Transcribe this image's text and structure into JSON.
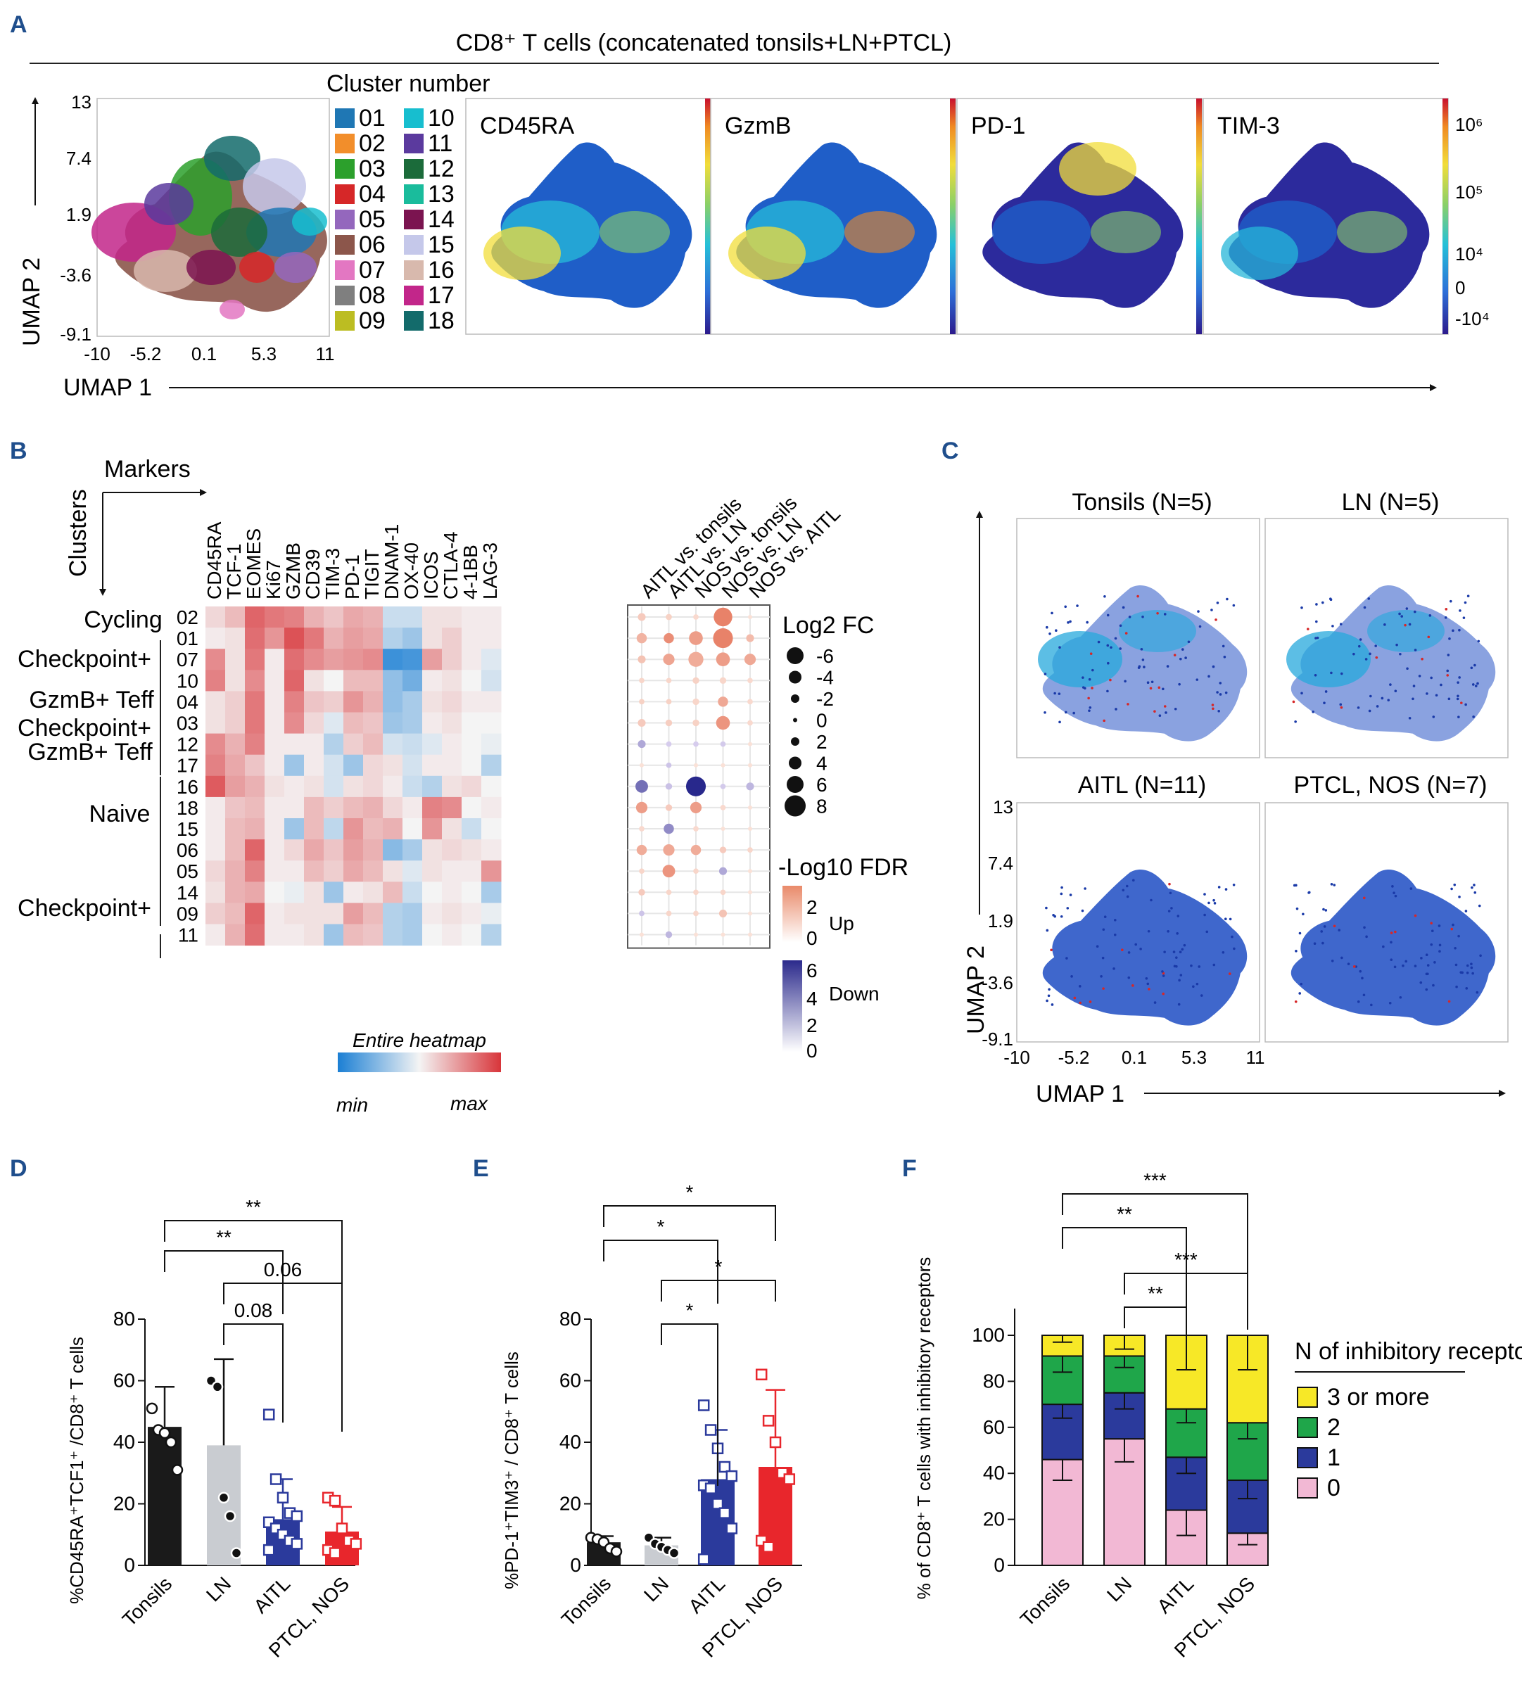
{
  "panels": {
    "A": {
      "label": "A",
      "title": "CD8⁺ T cells  (concatenated tonsils+LN+PTCL)",
      "legend_title": "Cluster number",
      "x_axis_label": "UMAP 1",
      "y_axis_label": "UMAP 2",
      "x_ticks": [
        "-10",
        "-5.2",
        "0.1",
        "5.3",
        "11"
      ],
      "y_ticks": [
        "13",
        "7.4",
        "1.9",
        "-3.6",
        "-9.1"
      ],
      "clusters": [
        {
          "id": "01",
          "color": "#1f77b4"
        },
        {
          "id": "02",
          "color": "#f28e2b"
        },
        {
          "id": "03",
          "color": "#2ca02c"
        },
        {
          "id": "04",
          "color": "#d62728"
        },
        {
          "id": "05",
          "color": "#9467bd"
        },
        {
          "id": "06",
          "color": "#8c564b"
        },
        {
          "id": "07",
          "color": "#e377c2"
        },
        {
          "id": "08",
          "color": "#7f7f7f"
        },
        {
          "id": "09",
          "color": "#bcbd22"
        },
        {
          "id": "10",
          "color": "#17becf"
        },
        {
          "id": "11",
          "color": "#5b3a9e"
        },
        {
          "id": "12",
          "color": "#1b6b3a"
        },
        {
          "id": "13",
          "color": "#1abc9c"
        },
        {
          "id": "14",
          "color": "#7b1450"
        },
        {
          "id": "15",
          "color": "#c5c8ea"
        },
        {
          "id": "16",
          "color": "#d8b9ad"
        },
        {
          "id": "17",
          "color": "#c2268a"
        },
        {
          "id": "18",
          "color": "#136b6b"
        }
      ],
      "markers": [
        "CD45RA",
        "GzmB",
        "PD-1",
        "TIM-3"
      ],
      "colorbar_ticks": [
        "10⁶",
        "10⁵",
        "10⁴",
        "0",
        "-10⁴"
      ]
    },
    "B": {
      "label": "B",
      "markers_label": "Markers",
      "clusters_label": "Clusters",
      "markers": [
        "CD45RA",
        "TCF-1",
        "EOMES",
        "Ki67",
        "GZMB",
        "CD39",
        "TIM-3",
        "PD-1",
        "TIGIT",
        "DNAM-1",
        "OX-40",
        "ICOS",
        "CTLA-4",
        "4-1BB",
        "LAG-3"
      ],
      "comparisons": [
        "AITL vs. tonsils",
        "AITL vs. LN",
        "NOS vs. tonsils",
        "NOS vs. LN",
        "NOS vs. AITL"
      ],
      "cluster_rows": [
        "02",
        "01",
        "07",
        "10",
        "04",
        "03",
        "12",
        "17",
        "16",
        "18",
        "15",
        "06",
        "05",
        "14",
        "09",
        "11"
      ],
      "group_labels": [
        "Cycling",
        "Checkpoint+",
        "GzmB+ Teff",
        "Checkpoint+",
        "GzmB+ Teff",
        "Naive",
        "Checkpoint+"
      ],
      "log2fc_title": "Log2 FC",
      "log2fc_levels": [
        "-6",
        "-4",
        "-2",
        "0",
        "2",
        "4",
        "6",
        "8"
      ],
      "fdr_title": "-Log10 FDR",
      "fdr_up_label": "Up",
      "fdr_down_label": "Down",
      "fdr_up_ticks": [
        "2",
        "0"
      ],
      "fdr_down_ticks": [
        "6",
        "4",
        "2",
        "0"
      ],
      "heatmap_title": "Entire heatmap",
      "heatmap_min": "min",
      "heatmap_max": "max"
    },
    "C": {
      "label": "C",
      "subpanels": [
        "Tonsils (N=5)",
        "LN (N=5)",
        "AITL (N=11)",
        "PTCL, NOS (N=7)"
      ],
      "x_axis_label": "UMAP 1",
      "y_axis_label": "UMAP 2",
      "x_ticks": [
        "-10",
        "-5.2",
        "0.1",
        "5.3",
        "11"
      ],
      "y_ticks": [
        "13",
        "7.4",
        "1.9",
        "-3.6",
        "-9.1"
      ]
    },
    "D": {
      "label": "D"
    },
    "E": {
      "label": "E"
    },
    "F": {
      "label": "F"
    }
  },
  "chart_data": [
    {
      "panel": "B",
      "type": "heatmap",
      "title": "Entire heatmap",
      "rows": [
        "02",
        "01",
        "07",
        "10",
        "04",
        "03",
        "12",
        "17",
        "16",
        "18",
        "15",
        "06",
        "05",
        "14",
        "09",
        "11"
      ],
      "columns": [
        "CD45RA",
        "TCF-1",
        "EOMES",
        "Ki67",
        "GZMB",
        "CD39",
        "TIM-3",
        "PD-1",
        "TIGIT",
        "DNAM-1",
        "OX-40",
        "ICOS",
        "CTLA-4",
        "4-1BB",
        "LAG-3"
      ],
      "scale": [
        -1,
        1
      ],
      "values": [
        [
          0.15,
          0.3,
          0.75,
          0.65,
          0.6,
          0.35,
          0.25,
          0.4,
          0.35,
          -0.2,
          -0.2,
          0.1,
          0.1,
          0.05,
          0.05
        ],
        [
          0.05,
          0.1,
          0.7,
          0.5,
          0.85,
          0.65,
          0.35,
          0.45,
          0.4,
          -0.3,
          -0.4,
          0.1,
          0.2,
          0.05,
          0.05
        ],
        [
          0.55,
          0.1,
          0.65,
          0.05,
          0.7,
          0.55,
          0.45,
          0.5,
          0.55,
          -0.85,
          -0.8,
          0.45,
          0.2,
          0.05,
          -0.1
        ],
        [
          0.6,
          0.1,
          0.55,
          0.05,
          0.75,
          0.1,
          0.0,
          0.3,
          0.3,
          -0.45,
          -0.6,
          0.05,
          0.1,
          0.0,
          -0.15
        ],
        [
          0.1,
          0.2,
          0.65,
          0.05,
          0.6,
          0.25,
          0.2,
          0.5,
          0.35,
          -0.45,
          -0.35,
          0.1,
          0.15,
          0.05,
          0.05
        ],
        [
          0.1,
          0.2,
          0.65,
          0.05,
          0.55,
          0.15,
          -0.1,
          0.3,
          0.25,
          -0.4,
          -0.35,
          0.05,
          0.1,
          0.0,
          0.0
        ],
        [
          0.55,
          0.35,
          0.6,
          0.05,
          0.05,
          0.05,
          -0.3,
          0.2,
          0.3,
          -0.15,
          -0.2,
          -0.1,
          0.05,
          0.0,
          -0.05
        ],
        [
          0.6,
          0.4,
          0.25,
          0.05,
          -0.4,
          0.05,
          -0.15,
          -0.4,
          0.15,
          0.1,
          -0.15,
          0.05,
          0.05,
          0.0,
          -0.3
        ],
        [
          0.8,
          0.45,
          0.35,
          0.1,
          0.05,
          0.1,
          -0.15,
          0.1,
          0.15,
          0.05,
          -0.2,
          -0.3,
          0.1,
          0.15,
          0.0
        ],
        [
          0.05,
          0.25,
          0.3,
          0.05,
          0.05,
          0.3,
          0.2,
          0.3,
          0.35,
          0.15,
          0.05,
          0.6,
          0.55,
          0.0,
          0.05
        ],
        [
          0.05,
          0.3,
          0.35,
          0.05,
          -0.4,
          0.3,
          -0.25,
          0.5,
          0.3,
          0.35,
          0.0,
          0.5,
          0.1,
          -0.2,
          0.0
        ],
        [
          0.05,
          0.3,
          0.75,
          0.05,
          0.15,
          0.4,
          0.25,
          0.45,
          0.35,
          -0.5,
          -0.35,
          0.1,
          0.15,
          0.1,
          0.05
        ],
        [
          0.15,
          0.35,
          0.6,
          0.05,
          0.05,
          0.3,
          0.2,
          0.4,
          0.3,
          0.1,
          -0.1,
          0.1,
          0.05,
          0.05,
          0.5
        ],
        [
          0.1,
          0.35,
          0.4,
          0.0,
          -0.05,
          0.1,
          -0.4,
          0.05,
          0.1,
          0.3,
          -0.2,
          0.0,
          0.05,
          0.0,
          -0.35
        ],
        [
          0.2,
          0.3,
          0.75,
          0.05,
          0.1,
          0.1,
          0.1,
          0.45,
          0.3,
          -0.3,
          -0.35,
          0.05,
          0.1,
          0.05,
          -0.05
        ],
        [
          0.05,
          0.35,
          0.7,
          0.05,
          0.05,
          0.1,
          -0.4,
          0.3,
          0.25,
          -0.3,
          -0.35,
          0.0,
          0.05,
          0.0,
          -0.3
        ]
      ]
    },
    {
      "panel": "B",
      "type": "scatter",
      "title": "Differential abundance (Log2 FC, -Log10 FDR)",
      "rows": [
        "02",
        "01",
        "07",
        "10",
        "04",
        "03",
        "12",
        "17",
        "16",
        "18",
        "15",
        "06",
        "05",
        "14",
        "09",
        "11"
      ],
      "columns": [
        "AITL vs. tonsils",
        "AITL vs. LN",
        "NOS vs. tonsils",
        "NOS vs. LN",
        "NOS vs. AITL"
      ],
      "log2fc": [
        [
          1.5,
          0.8,
          0.5,
          6,
          0
        ],
        [
          2.5,
          2.5,
          4,
          6.5,
          1.5
        ],
        [
          1.5,
          3,
          4.5,
          4,
          3
        ],
        [
          0.5,
          0.5,
          1,
          1,
          0.5
        ],
        [
          0.5,
          0.5,
          1,
          2.5,
          0.5
        ],
        [
          1.5,
          1,
          1,
          4,
          0.5
        ],
        [
          -1.5,
          -0.5,
          -0.5,
          -0.5,
          0
        ],
        [
          0,
          -0.5,
          0,
          0,
          0
        ],
        [
          -3.5,
          -1,
          -6.5,
          -0.5,
          -1.5
        ],
        [
          3,
          1,
          3,
          0.5,
          0
        ],
        [
          0.5,
          -2.5,
          0.5,
          0,
          0
        ],
        [
          2.5,
          3,
          2.5,
          1,
          0.5
        ],
        [
          0.5,
          3.5,
          0.5,
          -1.5,
          0
        ],
        [
          1,
          0.5,
          0.5,
          0.5,
          0
        ],
        [
          -0.5,
          0.5,
          0.5,
          1.5,
          0
        ],
        [
          0,
          -1,
          0,
          0,
          0
        ]
      ],
      "neg_log10_fdr": [
        [
          0.6,
          0.4,
          0.2,
          2.5,
          0
        ],
        [
          1.2,
          2.2,
          1.8,
          2.6,
          1
        ],
        [
          0.8,
          1.6,
          1.4,
          1.8,
          1.5
        ],
        [
          0.3,
          0.3,
          0.4,
          0.3,
          0.2
        ],
        [
          0.4,
          0.4,
          0.3,
          1.5,
          0.2
        ],
        [
          0.6,
          0.5,
          0.4,
          2,
          0.2
        ],
        [
          1.5,
          0.2,
          0.2,
          0.3,
          0
        ],
        [
          0,
          0.5,
          0,
          0,
          0
        ],
        [
          3.5,
          0.6,
          6,
          0.3,
          1
        ],
        [
          1.8,
          0.6,
          1.8,
          0.2,
          0
        ],
        [
          0.2,
          2.5,
          0.2,
          0,
          0
        ],
        [
          1.4,
          1.5,
          1.4,
          0.6,
          0.3
        ],
        [
          0.3,
          2,
          0.3,
          1.5,
          0
        ],
        [
          0.6,
          0.3,
          0.3,
          0.3,
          0
        ],
        [
          0.5,
          0.3,
          0.3,
          0.8,
          0
        ],
        [
          0,
          1,
          0,
          0,
          0
        ]
      ]
    },
    {
      "panel": "D",
      "type": "bar",
      "title": "",
      "ylabel": "%CD45RA⁺TCF1⁺ /CD8⁺ T cells",
      "xlabel": "",
      "categories": [
        "Tonsils",
        "LN",
        "AITL",
        "PTCL, NOS"
      ],
      "values": [
        45,
        39,
        15,
        11
      ],
      "errors": [
        13,
        28,
        13,
        8
      ],
      "colors": [
        "#1a1a1a",
        "#c9ccd1",
        "#2b3a9c",
        "#e8262c"
      ],
      "ylim": [
        0,
        80
      ],
      "yticks": [
        0,
        20,
        40,
        60,
        80
      ],
      "points": [
        [
          51,
          44,
          43,
          40,
          31
        ],
        [
          60,
          58,
          22,
          16,
          4
        ],
        [
          49,
          28,
          22,
          17,
          16,
          14,
          12,
          10,
          8,
          7,
          5
        ],
        [
          22,
          21,
          12,
          8,
          7,
          5,
          4
        ]
      ],
      "significance": [
        {
          "from": "Tonsils",
          "to": "PTCL, NOS",
          "label": "**"
        },
        {
          "from": "Tonsils",
          "to": "AITL",
          "label": "**"
        },
        {
          "from": "LN",
          "to": "PTCL, NOS",
          "label": "0.06"
        },
        {
          "from": "LN",
          "to": "AITL",
          "label": "0.08"
        }
      ]
    },
    {
      "panel": "E",
      "type": "bar",
      "title": "",
      "ylabel": "%PD-1⁺TIM3⁺ / CD8⁺ T cells",
      "xlabel": "",
      "categories": [
        "Tonsils",
        "LN",
        "AITL",
        "PTCL, NOS"
      ],
      "values": [
        7.5,
        6.5,
        28,
        32
      ],
      "errors": [
        2,
        2.5,
        16,
        25
      ],
      "colors": [
        "#1a1a1a",
        "#c9ccd1",
        "#2b3a9c",
        "#e8262c"
      ],
      "ylim": [
        0,
        80
      ],
      "yticks": [
        0,
        20,
        40,
        60,
        80
      ],
      "points": [
        [
          9,
          8.5,
          7.5,
          5.5,
          4.5
        ],
        [
          9,
          7,
          6,
          5,
          4
        ],
        [
          52,
          44,
          38,
          32,
          29,
          26,
          25,
          20,
          17,
          12,
          2
        ],
        [
          62,
          47,
          40,
          30,
          28,
          8,
          6
        ]
      ],
      "significance": [
        {
          "from": "Tonsils",
          "to": "PTCL, NOS",
          "label": "*"
        },
        {
          "from": "Tonsils",
          "to": "AITL",
          "label": "*"
        },
        {
          "from": "LN",
          "to": "PTCL, NOS",
          "label": "*"
        },
        {
          "from": "LN",
          "to": "AITL",
          "label": "*"
        }
      ]
    },
    {
      "panel": "F",
      "type": "bar",
      "stacked": true,
      "title": "",
      "ylabel": "% of CD8⁺ T cells with inhibitory receptors",
      "xlabel": "",
      "categories": [
        "Tonsils",
        "LN",
        "AITL",
        "PTCL, NOS"
      ],
      "legend_title": "N of inhibitory receptors",
      "series": [
        {
          "name": "0",
          "color": "#f2b8d4",
          "values": [
            46,
            55,
            24,
            14
          ],
          "errors": [
            9,
            10,
            11,
            5
          ]
        },
        {
          "name": "1",
          "color": "#2b3a9c",
          "values": [
            24,
            20,
            23,
            23
          ],
          "errors": [
            6,
            7,
            7,
            8
          ]
        },
        {
          "name": "2",
          "color": "#1fa64a",
          "values": [
            21,
            16,
            21,
            25
          ],
          "errors": [
            7,
            5,
            6,
            7
          ]
        },
        {
          "name": "3 or more",
          "color": "#f7e827",
          "values": [
            9,
            9,
            32,
            38
          ],
          "errors": [
            3,
            6,
            15,
            15
          ]
        }
      ],
      "ylim": [
        0,
        100
      ],
      "yticks": [
        0,
        20,
        40,
        60,
        80,
        100
      ],
      "significance": [
        {
          "from": "Tonsils",
          "to": "PTCL, NOS",
          "label": "***"
        },
        {
          "from": "Tonsils",
          "to": "AITL",
          "label": "**"
        },
        {
          "from": "LN",
          "to": "PTCL, NOS",
          "label": "***"
        },
        {
          "from": "LN",
          "to": "AITL",
          "label": "**"
        }
      ]
    }
  ]
}
